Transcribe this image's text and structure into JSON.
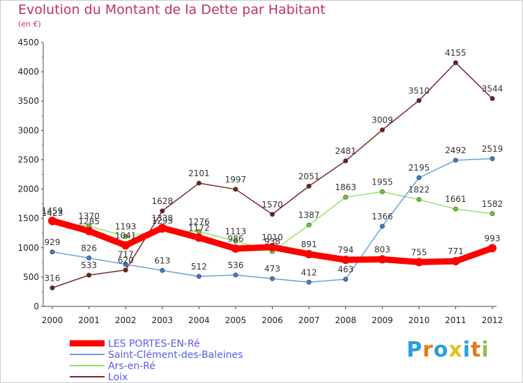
{
  "chart_data": {
    "type": "line",
    "title": "Evolution du Montant de la Dette par Habitant",
    "subtitle": "(en €)",
    "x": [
      "2000",
      "2001",
      "2002",
      "2003",
      "2004",
      "2005",
      "2006",
      "2007",
      "2008",
      "2009",
      "2010",
      "2011",
      "2012"
    ],
    "ylim": [
      0,
      4500
    ],
    "yticks": [
      0,
      500,
      1000,
      1500,
      2000,
      2500,
      3000,
      3500,
      4000,
      4500
    ],
    "grid": false,
    "legend_position": "bottom-left",
    "series": [
      {
        "name": "LES PORTES-EN-Ré",
        "color": "#ff0000",
        "marker": "#ff0000",
        "width": 9,
        "values": [
          1459,
          1285,
          1041,
          1338,
          1172,
          986,
          1010,
          891,
          794,
          803,
          755,
          771,
          993
        ]
      },
      {
        "name": "Saint-Clément-des-Baleines",
        "color": "#6aa0d8",
        "marker": "#3a7cc8",
        "width": 1.5,
        "values": [
          929,
          826,
          717,
          613,
          512,
          536,
          473,
          412,
          463,
          1366,
          2195,
          2492,
          2519
        ]
      },
      {
        "name": "Ars-en-Ré",
        "color": "#99e066",
        "marker": "#66cc33",
        "width": 1.5,
        "values": [
          1423,
          1370,
          1193,
          1293,
          1276,
          1113,
          938,
          1387,
          1863,
          1955,
          1822,
          1661,
          1582
        ]
      },
      {
        "name": "Loix",
        "color": "#7a2a2a",
        "marker": "#6b1f1f",
        "width": 1.5,
        "values": [
          316,
          533,
          620,
          1628,
          2101,
          1997,
          1570,
          2051,
          2481,
          3009,
          3510,
          4155,
          3544
        ]
      }
    ]
  },
  "logo": {
    "letters": [
      "P",
      "r",
      "o",
      "x",
      "i",
      "t",
      "i"
    ],
    "colors": [
      "#2a9ee0",
      "#e07b1e",
      "#2a9ee0",
      "#e0c21e",
      "#2a9ee0",
      "#e07b1e",
      "#8bc34a"
    ]
  }
}
